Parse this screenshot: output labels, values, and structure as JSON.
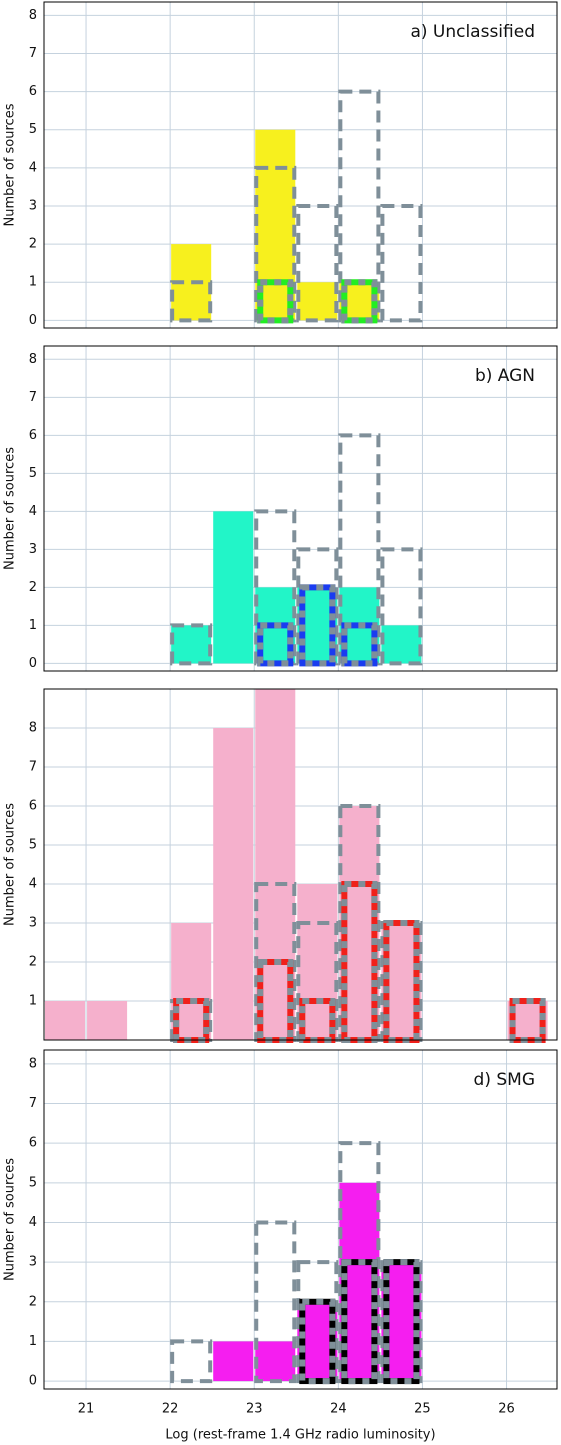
{
  "chart_data": [
    {
      "type": "histogram",
      "title": "a) Unclassified",
      "bins": [
        20.5,
        21,
        21.5,
        22,
        22.5,
        23,
        23.5,
        24,
        24.5,
        25,
        25.5,
        26,
        26.5
      ],
      "series": [
        {
          "style": "filled",
          "color": "#f7f01e",
          "values": [
            0,
            0,
            0,
            2,
            0,
            5,
            1,
            1,
            0,
            0,
            0,
            0
          ]
        },
        {
          "style": "dashed",
          "color": "#7f8f99",
          "values": [
            0,
            0,
            0,
            1,
            0,
            4,
            3,
            6,
            3,
            0,
            0,
            0
          ]
        },
        {
          "style": "inner",
          "color": "#22ee22",
          "values": [
            0,
            0,
            0,
            0,
            0,
            1,
            0,
            1,
            0,
            0,
            0,
            0
          ]
        }
      ],
      "xlim": [
        20.5,
        26.6
      ],
      "xticks": [
        21,
        22,
        23,
        24,
        25,
        26
      ],
      "ylim": [
        -0.2,
        8.35
      ],
      "yticks": [
        0,
        1,
        2,
        3,
        4,
        5,
        6,
        7,
        8
      ],
      "ylabel": "Number of sources",
      "grid": true
    },
    {
      "type": "histogram",
      "title": "b) AGN",
      "bins": [
        20.5,
        21,
        21.5,
        22,
        22.5,
        23,
        23.5,
        24,
        24.5,
        25,
        25.5,
        26,
        26.5
      ],
      "series": [
        {
          "style": "filled",
          "color": "#22f5c8",
          "values": [
            0,
            0,
            0,
            1,
            4,
            2,
            2,
            2,
            1,
            0,
            0,
            0
          ]
        },
        {
          "style": "dashed",
          "color": "#7f8f99",
          "values": [
            0,
            0,
            0,
            1,
            0,
            4,
            3,
            6,
            3,
            0,
            0,
            0
          ]
        },
        {
          "style": "inner",
          "color": "#1a3cf0",
          "values": [
            0,
            0,
            0,
            0,
            0,
            1,
            2,
            1,
            0,
            0,
            0,
            0
          ]
        }
      ],
      "xlim": [
        20.5,
        26.6
      ],
      "xticks": [
        21,
        22,
        23,
        24,
        25,
        26
      ],
      "ylim": [
        -0.2,
        8.35
      ],
      "yticks": [
        0,
        1,
        2,
        3,
        4,
        5,
        6,
        7,
        8
      ],
      "ylabel": "Number of sources",
      "grid": true
    },
    {
      "type": "histogram",
      "bins": [
        20.5,
        21,
        21.5,
        22,
        22.5,
        23,
        23.5,
        24,
        24.5,
        25,
        25.5,
        26,
        26.5
      ],
      "series": [
        {
          "style": "filled",
          "color": "#f5b0cc",
          "values": [
            1,
            1,
            0,
            3,
            8,
            9,
            4,
            6,
            3,
            0,
            0,
            1
          ]
        },
        {
          "style": "dashed",
          "color": "#7f8f99",
          "values": [
            0,
            0,
            0,
            1,
            0,
            4,
            3,
            6,
            3,
            0,
            0,
            0
          ]
        },
        {
          "style": "inner",
          "color": "#f0201a",
          "values": [
            0,
            0,
            0,
            1,
            0,
            2,
            1,
            4,
            3,
            0,
            0,
            1
          ]
        }
      ],
      "xlim": [
        20.5,
        26.6
      ],
      "xticks": [
        21,
        22,
        23,
        24,
        25,
        26
      ],
      "ylim": [
        0,
        9
      ],
      "yticks": [
        1,
        2,
        3,
        4,
        5,
        6,
        7,
        8
      ],
      "ylabel": "Number of sources",
      "grid": true
    },
    {
      "type": "histogram",
      "title": "d) SMG",
      "bins": [
        20.5,
        21,
        21.5,
        22,
        22.5,
        23,
        23.5,
        24,
        24.5,
        25,
        25.5,
        26,
        26.5
      ],
      "series": [
        {
          "style": "filled",
          "color": "#f51ef0",
          "values": [
            0,
            0,
            0,
            0,
            1,
            1,
            2,
            5,
            3,
            0,
            0,
            0
          ]
        },
        {
          "style": "dashed",
          "color": "#7f8f99",
          "values": [
            0,
            0,
            0,
            1,
            0,
            4,
            3,
            6,
            3,
            0,
            0,
            0
          ]
        },
        {
          "style": "inner",
          "color": "#000000",
          "values": [
            0,
            0,
            0,
            0,
            0,
            0,
            2,
            3,
            3,
            0,
            0,
            0
          ]
        }
      ],
      "xlim": [
        20.5,
        26.6
      ],
      "xticks": [
        21,
        22,
        23,
        24,
        25,
        26
      ],
      "ylim": [
        -0.2,
        8.35
      ],
      "yticks": [
        0,
        1,
        2,
        3,
        4,
        5,
        6,
        7,
        8
      ],
      "ylabel": "Number of sources",
      "xlabel": "Log (rest-frame 1.4 GHz radio luminosity)",
      "grid": true
    }
  ]
}
